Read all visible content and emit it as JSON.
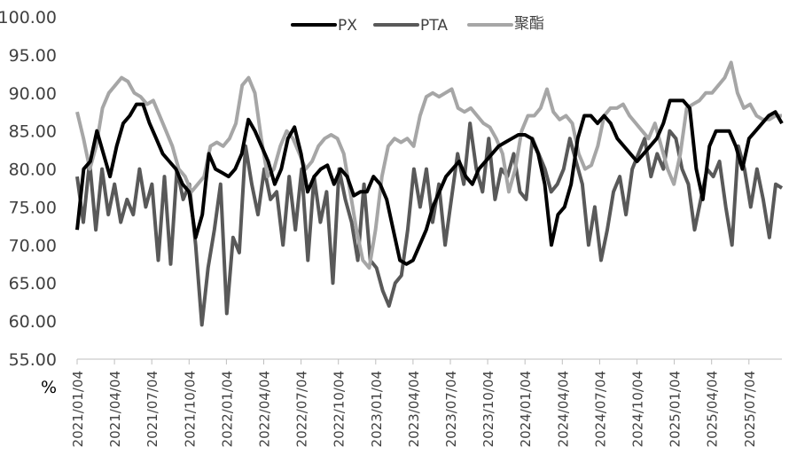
{
  "chart_data": {
    "type": "line",
    "title": "",
    "xlabel": "",
    "ylabel": "%",
    "ylim": [
      55,
      100
    ],
    "yticks": [
      "100.00",
      "95.00",
      "90.00",
      "85.00",
      "80.00",
      "75.00",
      "70.00",
      "65.00",
      "60.00",
      "55.00"
    ],
    "grid": false,
    "legend_position": "top",
    "x_tick_labels": [
      "2021/01/04",
      "2021/04/04",
      "2021/07/04",
      "2021/10/04",
      "2022/01/04",
      "2022/04/04",
      "2022/07/04",
      "2022/10/04",
      "2023/01/04",
      "2023/04/04",
      "2023/07/04",
      "2023/10/04",
      "2024/01/04",
      "2024/04/04",
      "2024/07/04",
      "2024/10/04",
      "2025/01/04",
      "2025/04/04",
      "2025/07/04"
    ],
    "x_sampling": "approx. semi-monthly samples starting 2021/01/04, 6 per quarter",
    "series": [
      {
        "name": "PX",
        "color": "#000000",
        "values": [
          72,
          80,
          81,
          85,
          82,
          79,
          83,
          86,
          87,
          88.5,
          88.5,
          86,
          84,
          82,
          81,
          80,
          78,
          77,
          71,
          74,
          82,
          80,
          79.5,
          79,
          80,
          82,
          86.5,
          85,
          83,
          81,
          78,
          80,
          84,
          85.5,
          82,
          77,
          79,
          80,
          80.5,
          78,
          80,
          79,
          76.5,
          77,
          77,
          79,
          78,
          76,
          72,
          68,
          67.5,
          68,
          70,
          72,
          75,
          77,
          79,
          80,
          81,
          79,
          78,
          80,
          81,
          82,
          83,
          83.5,
          84,
          84.5,
          84.5,
          84,
          82,
          78,
          70,
          74,
          75,
          78,
          84,
          87,
          87,
          86,
          87,
          86,
          84,
          83,
          82,
          81,
          82,
          83,
          84,
          86,
          89,
          89,
          89,
          88,
          80,
          76,
          83,
          85,
          85,
          85,
          83,
          80,
          84,
          85,
          86,
          87,
          87.5,
          86
        ],
        "line_width": 4
      },
      {
        "name": "PTA",
        "color": "#595959",
        "values": [
          79,
          73,
          81,
          72,
          80,
          74,
          78,
          73,
          76,
          74,
          80,
          75,
          78,
          68,
          79,
          67.5,
          80,
          76,
          78,
          70,
          59.5,
          67,
          72,
          78,
          61,
          71,
          69,
          83,
          78,
          74,
          80,
          76,
          77,
          70,
          79,
          72,
          80,
          68,
          79,
          73,
          77,
          65,
          80,
          76,
          73,
          68,
          78,
          68,
          67,
          64,
          62,
          65,
          66,
          72,
          80,
          75,
          80,
          73,
          78,
          70,
          76,
          82,
          78,
          86,
          80,
          77,
          84,
          76,
          80,
          79,
          82,
          77,
          76,
          84,
          82,
          80,
          77,
          78,
          80,
          84,
          81,
          78,
          70,
          75,
          68,
          72,
          77,
          79,
          74,
          80,
          82,
          84,
          79,
          82,
          80,
          85,
          84,
          80,
          78,
          72,
          76,
          80,
          79,
          81,
          75,
          70,
          83,
          80,
          75,
          80,
          76,
          71,
          78,
          77.5
        ],
        "line_width": 4
      },
      {
        "name": "聚酯",
        "color": "#a6a6a6",
        "values": [
          87.5,
          84,
          80,
          83,
          88,
          90,
          91,
          92,
          91.5,
          90,
          89.5,
          88.5,
          89,
          87,
          85,
          83,
          80,
          79,
          77,
          78,
          79,
          83,
          83.5,
          83,
          84,
          86,
          91,
          92,
          90,
          84,
          79,
          80,
          83,
          85,
          84,
          82,
          80,
          81,
          83,
          84,
          84.5,
          84,
          82,
          77,
          72,
          68,
          67,
          72,
          79,
          83,
          84,
          83.5,
          84,
          83,
          87,
          89.5,
          90,
          89.5,
          90,
          90.5,
          88,
          87.5,
          88,
          87,
          86,
          85.5,
          84,
          82,
          77,
          80,
          85,
          87,
          87,
          88,
          90.5,
          87.5,
          86.5,
          87,
          86,
          82,
          80,
          80.5,
          83,
          87,
          88,
          88,
          88.5,
          87,
          86,
          85,
          84,
          86,
          83,
          80,
          78,
          82,
          88,
          88.5,
          89,
          90,
          90,
          91,
          92,
          94,
          90,
          88,
          88.5,
          87,
          86.5,
          86.5,
          87,
          87
        ],
        "line_width": 4
      }
    ]
  },
  "legend": {
    "items": [
      {
        "label": "PX",
        "color": "#000000"
      },
      {
        "label": "PTA",
        "color": "#595959"
      },
      {
        "label": "聚酯",
        "color": "#a6a6a6"
      }
    ]
  },
  "axis": {
    "unit_label": "%"
  }
}
